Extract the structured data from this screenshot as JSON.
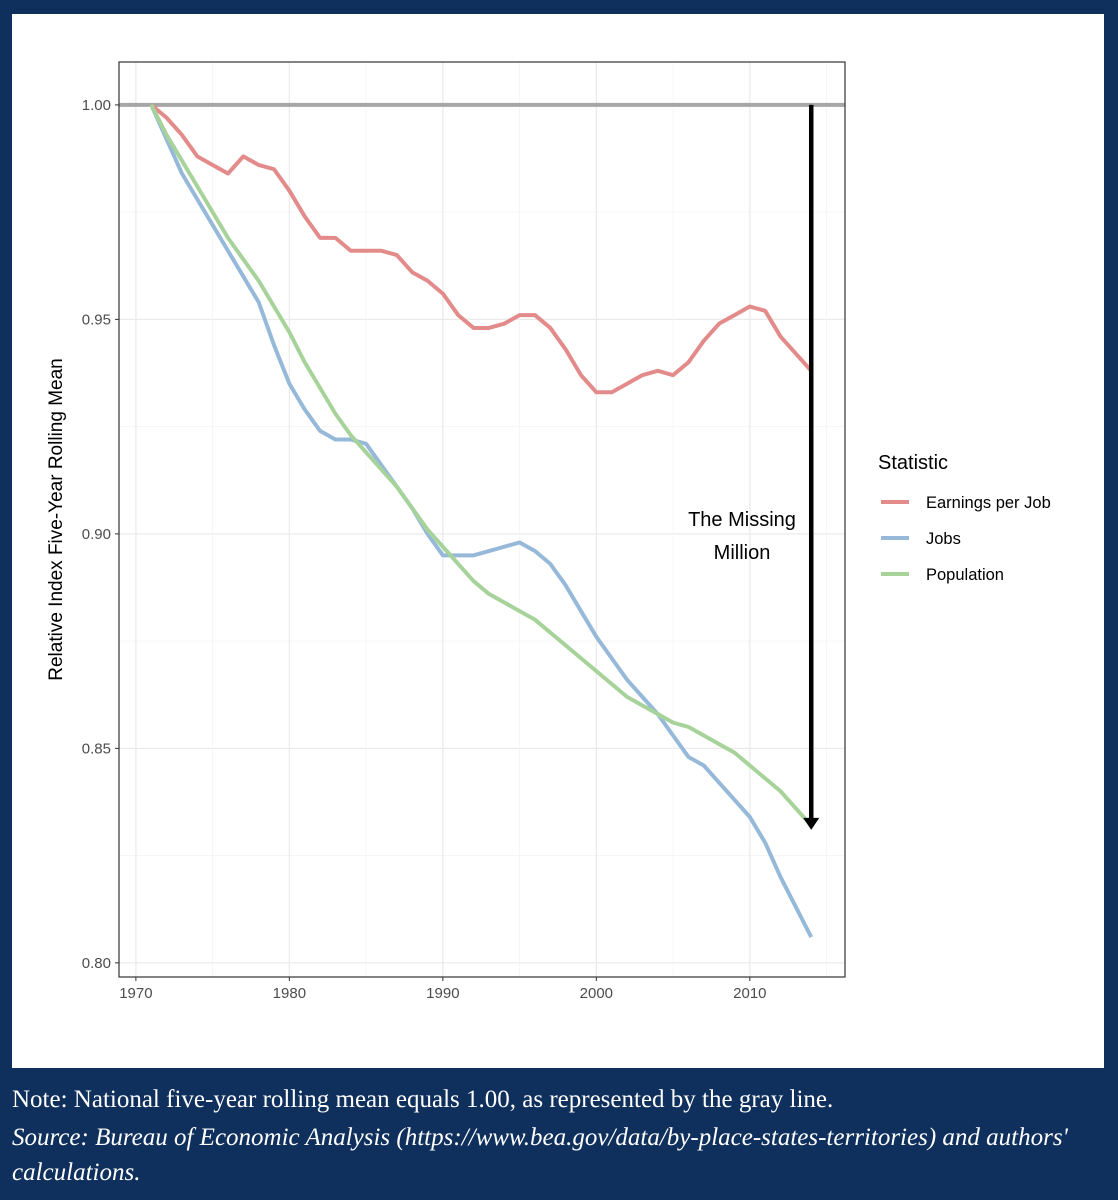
{
  "chart_data": {
    "type": "line",
    "title": "",
    "xlabel": "",
    "ylabel": "Relative Index Five-Year Rolling Mean",
    "xlim": [
      1968.9,
      2016.2
    ],
    "ylim": [
      0.7967,
      1.01
    ],
    "xticks": [
      1970,
      1980,
      1990,
      2000,
      2010
    ],
    "yticks": [
      0.8,
      0.85,
      0.9,
      0.95,
      1.0
    ],
    "ytick_labels": [
      "0.80",
      "0.85",
      "0.90",
      "0.95",
      "1.00"
    ],
    "grid": true,
    "reference_line": {
      "y": 1.0,
      "color": "#a6a6a6"
    },
    "legend": {
      "title": "Statistic",
      "placement": "right"
    },
    "annotation": {
      "text_line1": "The Missing",
      "text_line2": "Million",
      "arrow_x": 2014,
      "arrow_from": 1.0,
      "arrow_to": 0.831
    },
    "x": [
      1971,
      1972,
      1973,
      1974,
      1975,
      1976,
      1977,
      1978,
      1979,
      1980,
      1981,
      1982,
      1983,
      1984,
      1985,
      1986,
      1987,
      1988,
      1989,
      1990,
      1991,
      1992,
      1993,
      1994,
      1995,
      1996,
      1997,
      1998,
      1999,
      2000,
      2001,
      2002,
      2003,
      2004,
      2005,
      2006,
      2007,
      2008,
      2009,
      2010,
      2011,
      2012,
      2013,
      2014
    ],
    "series": [
      {
        "name": "Earnings per Job",
        "color": "#e38b8b",
        "values": [
          1.0,
          0.997,
          0.993,
          0.988,
          0.986,
          0.984,
          0.988,
          0.986,
          0.985,
          0.98,
          0.974,
          0.969,
          0.969,
          0.966,
          0.966,
          0.966,
          0.965,
          0.961,
          0.959,
          0.956,
          0.951,
          0.948,
          0.948,
          0.949,
          0.951,
          0.951,
          0.948,
          0.943,
          0.937,
          0.933,
          0.933,
          0.935,
          0.937,
          0.938,
          0.937,
          0.94,
          0.945,
          0.949,
          0.951,
          0.953,
          0.952,
          0.946,
          0.942,
          0.938
        ]
      },
      {
        "name": "Jobs",
        "color": "#96b9d9",
        "values": [
          1.0,
          0.992,
          0.984,
          0.978,
          0.972,
          0.966,
          0.96,
          0.954,
          0.944,
          0.935,
          0.929,
          0.924,
          0.922,
          0.922,
          0.921,
          0.916,
          0.911,
          0.906,
          0.9,
          0.895,
          0.895,
          0.895,
          0.896,
          0.897,
          0.898,
          0.896,
          0.893,
          0.888,
          0.882,
          0.876,
          0.871,
          0.866,
          0.862,
          0.858,
          0.853,
          0.848,
          0.846,
          0.842,
          0.838,
          0.834,
          0.828,
          0.82,
          0.813,
          0.806
        ]
      },
      {
        "name": "Population",
        "color": "#a7d39b",
        "values": [
          1.0,
          0.993,
          0.987,
          0.981,
          0.975,
          0.969,
          0.964,
          0.959,
          0.953,
          0.947,
          0.94,
          0.934,
          0.928,
          0.923,
          0.919,
          0.915,
          0.911,
          0.906,
          0.901,
          0.897,
          0.893,
          0.889,
          0.886,
          0.884,
          0.882,
          0.88,
          0.877,
          0.874,
          0.871,
          0.868,
          0.865,
          0.862,
          0.86,
          0.858,
          0.856,
          0.855,
          0.853,
          0.851,
          0.849,
          0.846,
          0.843,
          0.84,
          0.836,
          0.832
        ]
      }
    ]
  },
  "footer": {
    "note": "Note: National five-year rolling mean equals 1.00, as represented by the gray line.",
    "source": "Source: Bureau of Economic Analysis (https://www.bea.gov/data/by-place-states-territories) and authors' calculations."
  },
  "colors": {
    "background": "#0f2f5c",
    "panel": "#ffffff"
  }
}
